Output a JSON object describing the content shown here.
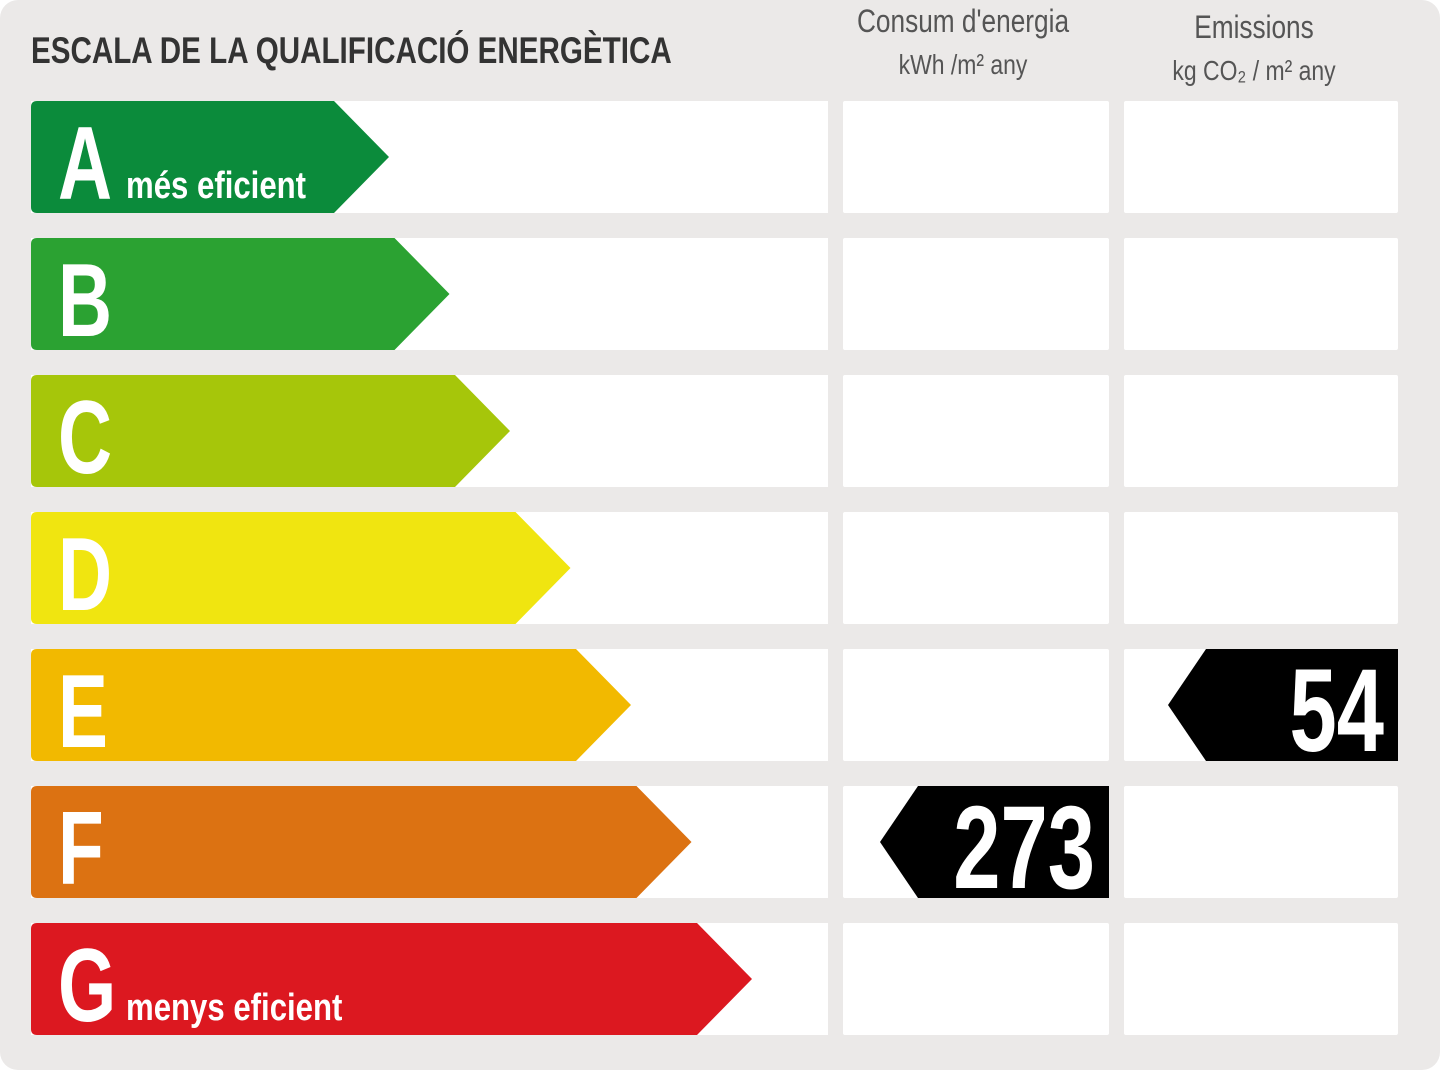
{
  "title": "ESCALA DE LA QUALIFICACIÓ ENERGÈTICA",
  "columns": [
    {
      "title": "Consum d'energia",
      "unit": "kWh /m² any"
    },
    {
      "title": "Emissions",
      "unit": "kg CO₂ / m² any"
    }
  ],
  "rows": [
    {
      "letter": "A",
      "label": "més eficient",
      "color": "#0b8b3b"
    },
    {
      "letter": "B",
      "color": "#2ba232"
    },
    {
      "letter": "C",
      "color": "#a6c60a"
    },
    {
      "letter": "D",
      "color": "#f0e510"
    },
    {
      "letter": "E",
      "color": "#f2b900",
      "emissions": 54
    },
    {
      "letter": "F",
      "color": "#dc7212",
      "consumption": 273
    },
    {
      "letter": "G",
      "label": "menys eficient",
      "color": "#dc1820"
    }
  ]
}
